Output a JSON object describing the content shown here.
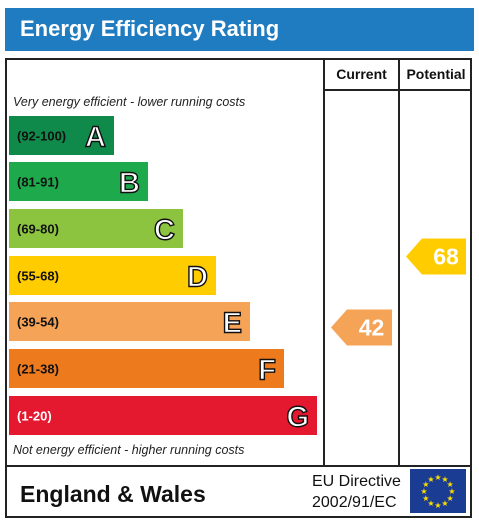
{
  "title": "Energy Efficiency Rating",
  "columns": {
    "current": "Current",
    "potential": "Potential"
  },
  "top_note": "Very energy efficient - lower running costs",
  "bottom_note": "Not energy efficient - higher running costs",
  "footer": {
    "region": "England & Wales",
    "directive_line1": "EU Directive",
    "directive_line2": "2002/91/EC"
  },
  "colors": {
    "title_bar": "#1f7cc0",
    "flag": "#1a3d93",
    "flag_stars": "#ffdd00"
  },
  "chart_data": {
    "type": "bar",
    "title": "Energy Efficiency Rating",
    "categories": [
      "A",
      "B",
      "C",
      "D",
      "E",
      "F",
      "G"
    ],
    "ranges": [
      "(92-100)",
      "(81-91)",
      "(69-80)",
      "(55-68)",
      "(39-54)",
      "(21-38)",
      "(1-20)"
    ],
    "colors": [
      "#108a4a",
      "#1ea94c",
      "#8cc43f",
      "#ffcc00",
      "#f5a356",
      "#ee7a1e",
      "#e4182f"
    ],
    "current": {
      "value": 42,
      "band": "E",
      "color": "#f5a356"
    },
    "potential": {
      "value": 68,
      "band": "D",
      "color": "#ffcc00"
    }
  }
}
